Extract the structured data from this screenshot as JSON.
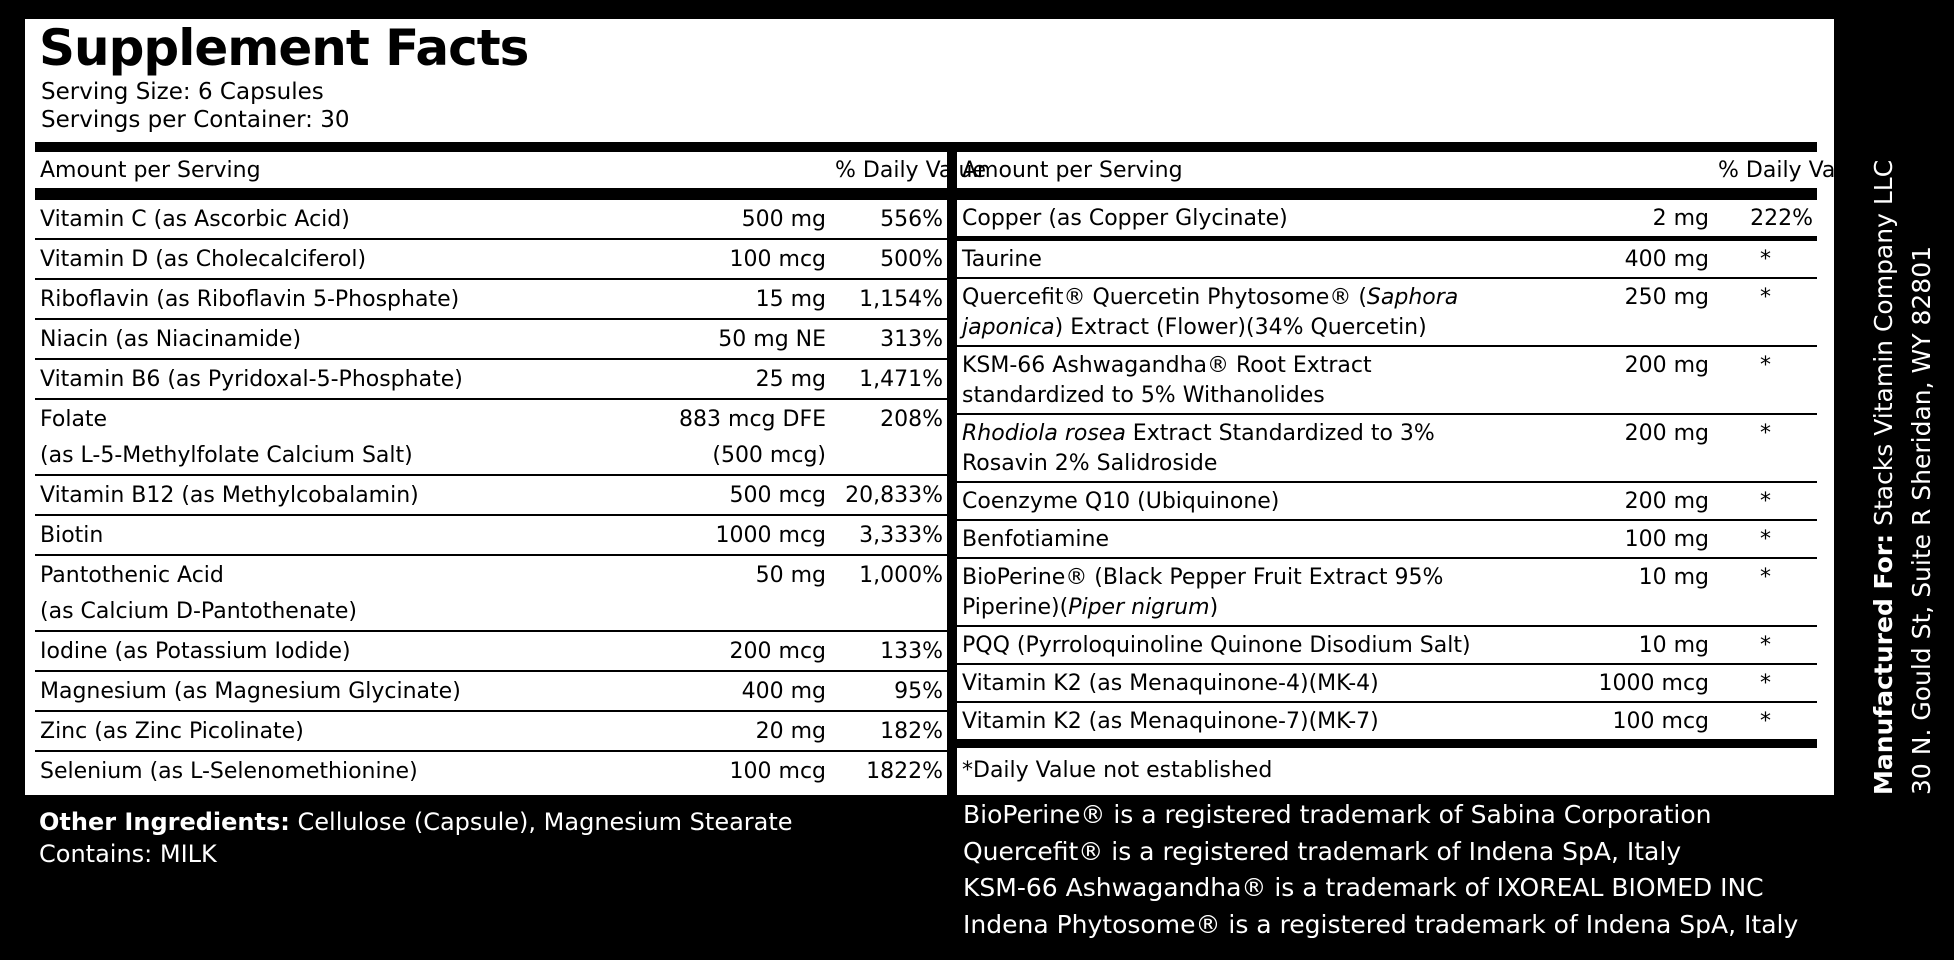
{
  "header": {
    "title": "Supplement Facts",
    "serving_size": "Serving Size: 6 Capsules",
    "servings_per_container": "Servings per Container: 30"
  },
  "left_table": {
    "columns": [
      "Amount per Serving",
      "% Daily Value"
    ],
    "rows": [
      {
        "name": [
          "Vitamin C (as Ascorbic Acid)"
        ],
        "amount": "500 mg",
        "daily_value": "556%"
      },
      {
        "name": [
          "Vitamin D (as Cholecalciferol)"
        ],
        "amount": "100 mcg",
        "daily_value": "500%"
      },
      {
        "name": [
          "Riboflavin (as Riboflavin 5-Phosphate)"
        ],
        "amount": "15 mg",
        "daily_value": "1,154%"
      },
      {
        "name": [
          "Niacin (as Niacinamide)"
        ],
        "amount": "50 mg NE",
        "daily_value": "313%"
      },
      {
        "name": [
          "Vitamin B6 (as Pyridoxal-5-Phosphate)"
        ],
        "amount": "25 mg",
        "daily_value": "1,471%"
      },
      {
        "name": [
          "Folate",
          "(as L-5-Methylfolate Calcium Salt)"
        ],
        "amount": [
          "883 mcg DFE",
          "(500 mcg)"
        ],
        "daily_value": "208%"
      },
      {
        "name": [
          "Vitamin B12 (as Methylcobalamin)"
        ],
        "amount": "500 mcg",
        "daily_value": "20,833%"
      },
      {
        "name": [
          "Biotin"
        ],
        "amount": "1000 mcg",
        "daily_value": "3,333%"
      },
      {
        "name": [
          "Pantothenic Acid",
          "(as Calcium D-Pantothenate)"
        ],
        "amount": "50 mg",
        "daily_value": "1,000%"
      },
      {
        "name": [
          "Iodine (as Potassium Iodide)"
        ],
        "amount": "200 mcg",
        "daily_value": "133%"
      },
      {
        "name": [
          "Magnesium (as Magnesium Glycinate)"
        ],
        "amount": "400 mg",
        "daily_value": "95%"
      },
      {
        "name": [
          "Zinc (as Zinc Picolinate)"
        ],
        "amount": "20 mg",
        "daily_value": "182%"
      },
      {
        "name": [
          "Selenium (as L-Selenomethionine)"
        ],
        "amount": "100 mcg",
        "daily_value": "1822%"
      }
    ]
  },
  "right_table": {
    "columns": [
      "Amount per Serving",
      "% Daily Value"
    ],
    "rows": [
      {
        "name": [
          "Copper (as Copper Glycinate)"
        ],
        "amount": "2 mg",
        "daily_value": "222%"
      },
      {
        "name": [
          "Taurine"
        ],
        "amount": "400 mg",
        "daily_value": "*"
      },
      {
        "name": [
          [
            "Quercefit® Quercetin Phytosome® (",
            {
              "italic": "Saphora"
            }
          ],
          [
            {
              "italic": "japonica"
            },
            ") Extract (Flower)(34% Quercetin)"
          ]
        ],
        "amount": "250 mg",
        "daily_value": "*"
      },
      {
        "name": [
          "KSM-66 Ashwagandha® Root Extract",
          "standardized to 5% Withanolides"
        ],
        "amount": "200 mg",
        "daily_value": "*"
      },
      {
        "name": [
          [
            {
              "italic": "Rhodiola rosea"
            },
            " Extract Standardized to 3%"
          ],
          "Rosavin 2% Salidroside"
        ],
        "amount": "200 mg",
        "daily_value": "*"
      },
      {
        "name": [
          "Coenzyme Q10 (Ubiquinone)"
        ],
        "amount": "200 mg",
        "daily_value": "*"
      },
      {
        "name": [
          "Benfotiamine"
        ],
        "amount": "100 mg",
        "daily_value": "*"
      },
      {
        "name": [
          "BioPerine® (Black Pepper Fruit Extract 95%",
          [
            "Piperine)(",
            {
              "italic": "Piper nigrum"
            },
            ")"
          ]
        ],
        "amount": "10 mg",
        "daily_value": "*"
      },
      {
        "name": [
          "PQQ (Pyrroloquinoline Quinone Disodium Salt)"
        ],
        "amount": "10 mg",
        "daily_value": "*"
      },
      {
        "name": [
          "Vitamin K2 (as Menaquinone-4)(MK-4)"
        ],
        "amount": "1000 mcg",
        "daily_value": "*"
      },
      {
        "name": [
          "Vitamin K2 (as Menaquinone-7)(MK-7)"
        ],
        "amount": "100 mcg",
        "daily_value": "*"
      }
    ],
    "footnote": "*Daily Value not established"
  },
  "other_ingredients": {
    "label": "Other Ingredients:",
    "text": "Cellulose (Capsule), Magnesium Stearate",
    "contains": "Contains: MILK"
  },
  "trademarks": [
    "BioPerine® is a registered trademark of Sabina Corporation",
    "Quercefit® is a registered trademark of Indena SpA, Italy",
    "KSM-66 Ashwagandha® is a trademark of IXOREAL BIOMED INC",
    "Indena Phytosome® is a registered trademark of Indena SpA, Italy"
  ],
  "manufacturer": {
    "label": "Manufactured For:",
    "name": "Stacks Vitamin Company LLC",
    "address": "30 N. Gould St, Suite R Sheridan, WY 82801"
  }
}
